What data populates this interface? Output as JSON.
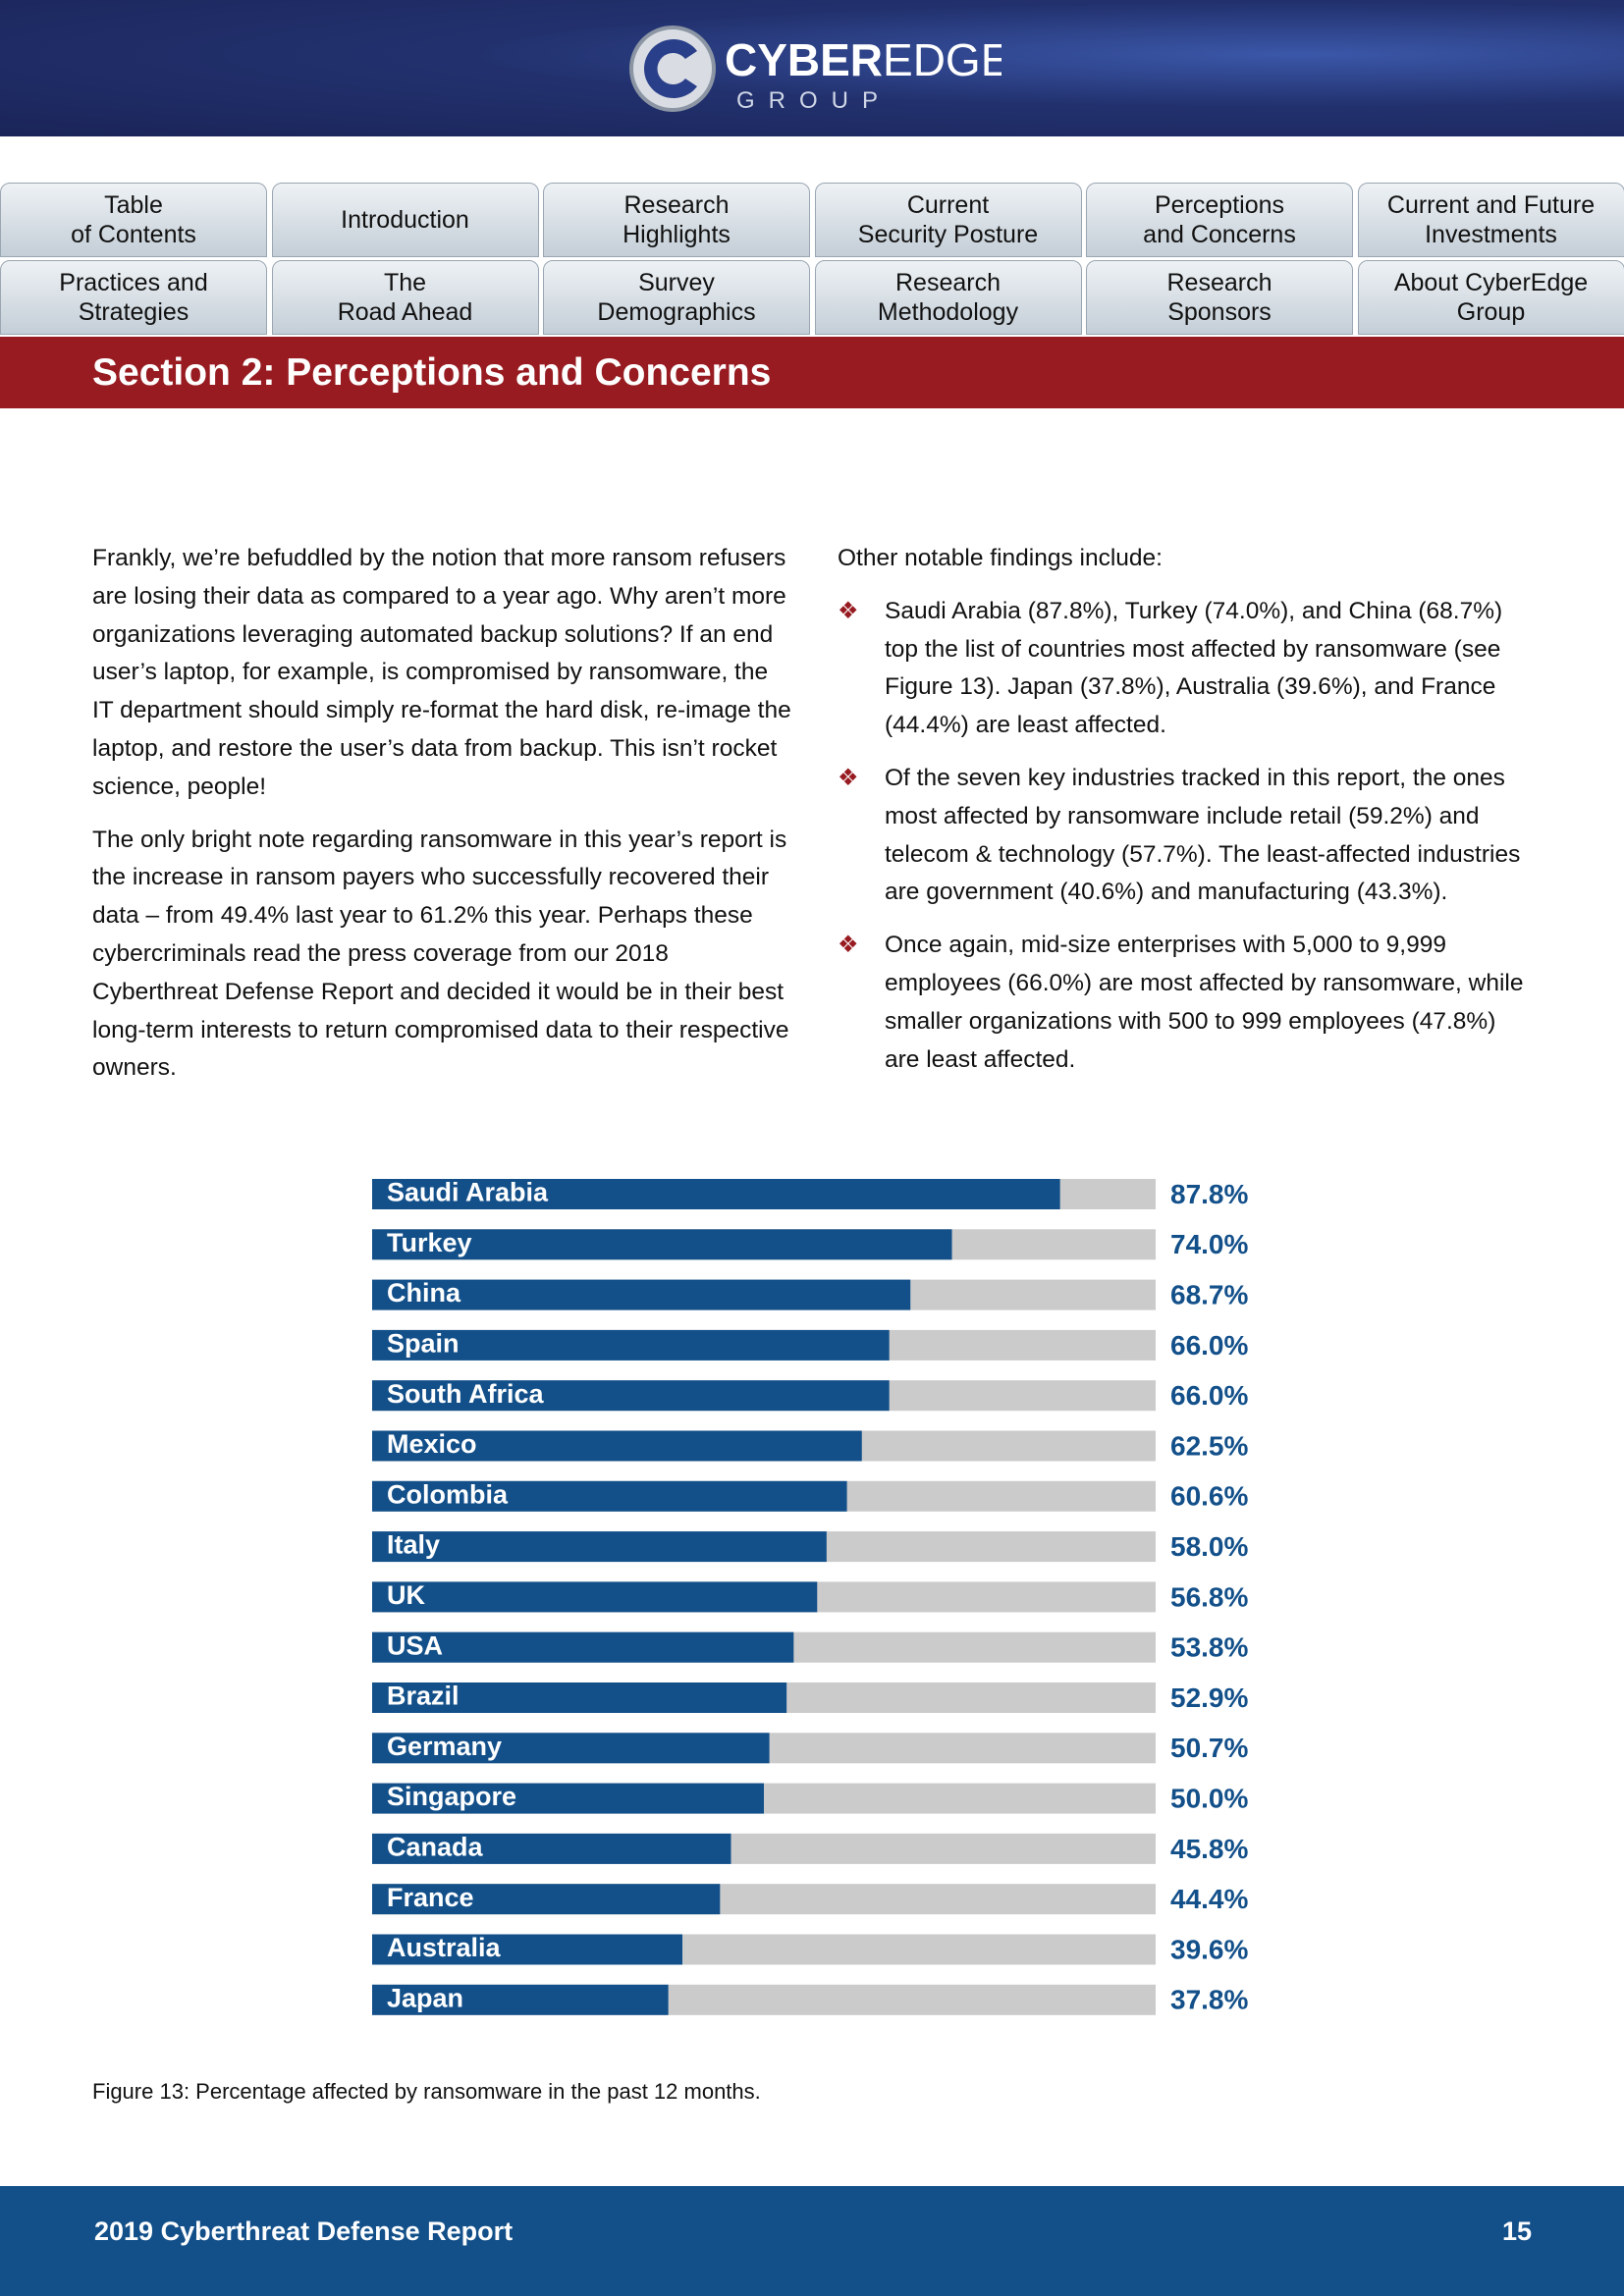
{
  "header": {
    "logo_bold": "CYBER",
    "logo_light": "EDGE",
    "logo_sub": "GROUP"
  },
  "nav": [
    {
      "lines": [
        "Table",
        "of Contents"
      ]
    },
    {
      "lines": [
        "Introduction"
      ]
    },
    {
      "lines": [
        "Research",
        "Highlights"
      ]
    },
    {
      "lines": [
        "Current",
        "Security Posture"
      ]
    },
    {
      "lines": [
        "Perceptions",
        "and Concerns"
      ]
    },
    {
      "lines": [
        "Current and Future",
        "Investments"
      ]
    },
    {
      "lines": [
        "Practices and",
        "Strategies"
      ]
    },
    {
      "lines": [
        "The",
        "Road Ahead"
      ]
    },
    {
      "lines": [
        "Survey",
        "Demographics"
      ]
    },
    {
      "lines": [
        "Research",
        "Methodology"
      ]
    },
    {
      "lines": [
        "Research",
        "Sponsors"
      ]
    },
    {
      "lines": [
        "About CyberEdge",
        "Group"
      ]
    }
  ],
  "section_title": "Section 2: Perceptions and Concerns",
  "left_paragraphs": [
    "Frankly, we’re befuddled by the notion that more ransom refusers are losing their data as compared to a year ago. Why aren’t more organizations leveraging automated backup solutions? If an end user’s laptop, for example, is compromised by ransomware, the IT department should simply re-format the hard disk, re-image the laptop, and restore the user’s data from backup. This isn’t rocket science, people!",
    "The only bright note regarding ransomware in this year’s report is the increase in ransom payers who successfully recovered their data – from 49.4% last year to 61.2% this year. Perhaps these cybercriminals read the press coverage from our 2018 Cyberthreat Defense Report and decided it would be in their best long-term interests to return compromised data to their respective owners."
  ],
  "right_intro": "Other notable findings include:",
  "bullets": [
    "Saudi Arabia (87.8%), Turkey (74.0%), and China (68.7%) top the list of countries most affected by ransomware (see Figure 13). Japan (37.8%), Australia (39.6%), and France (44.4%) are least affected.",
    "Of the seven key industries tracked in this report, the ones most affected by ransomware include retail (59.2%) and telecom & technology (57.7%). The least-affected industries are government (40.6%) and manufacturing (43.3%).",
    "Once again, mid-size enterprises with 5,000 to 9,999 employees (66.0%) are most affected by ransomware, while smaller organizations with 500 to 999 employees (47.8%) are least affected."
  ],
  "chart_data": {
    "type": "bar",
    "orientation": "horizontal",
    "categories": [
      "Saudi Arabia",
      "Turkey",
      "China",
      "Spain",
      "South Africa",
      "Mexico",
      "Colombia",
      "Italy",
      "UK",
      "USA",
      "Brazil",
      "Germany",
      "Singapore",
      "Canada",
      "France",
      "Australia",
      "Japan"
    ],
    "values": [
      87.8,
      74.0,
      68.7,
      66.0,
      66.0,
      62.5,
      60.6,
      58.0,
      56.8,
      53.8,
      52.9,
      50.7,
      50.0,
      45.8,
      44.4,
      39.6,
      37.8
    ],
    "value_labels": [
      "87.8%",
      "74.0%",
      "68.7%",
      "66.0%",
      "66.0%",
      "62.5%",
      "60.6%",
      "58.0%",
      "56.8%",
      "53.8%",
      "52.9%",
      "50.7%",
      "50.0%",
      "45.8%",
      "44.4%",
      "39.6%",
      "37.8%"
    ],
    "xlim": [
      0,
      100
    ],
    "color": "#13508a",
    "track_color": "#cbcbcb"
  },
  "caption": "Figure 13: Percentage affected by ransomware in the past 12 months.",
  "footer": {
    "title": "2019 Cyberthreat Defense Report",
    "page": "15"
  }
}
